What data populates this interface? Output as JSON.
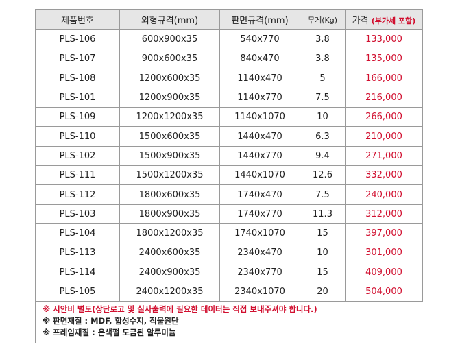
{
  "headers": {
    "product_no": "제품번호",
    "outer_size": "외형규격(mm)",
    "board_size": "판면규격(mm)",
    "weight": "무게(Kg)",
    "price": "가격",
    "price_sub": "(부가세 포함)"
  },
  "rows": [
    {
      "id": "PLS-106",
      "outer": "600x900x35",
      "board": "540x770",
      "weight": "3.8",
      "price": "133,000"
    },
    {
      "id": "PLS-107",
      "outer": "900x600x35",
      "board": "840x470",
      "weight": "3.8",
      "price": "135,000"
    },
    {
      "id": "PLS-108",
      "outer": "1200x600x35",
      "board": "1140x470",
      "weight": "5",
      "price": "166,000"
    },
    {
      "id": "PLS-101",
      "outer": "1200x900x35",
      "board": "1140x770",
      "weight": "7.5",
      "price": "216,000"
    },
    {
      "id": "PLS-109",
      "outer": "1200x1200x35",
      "board": "1140x1070",
      "weight": "10",
      "price": "266,000"
    },
    {
      "id": "PLS-110",
      "outer": "1500x600x35",
      "board": "1440x470",
      "weight": "6.3",
      "price": "210,000"
    },
    {
      "id": "PLS-102",
      "outer": "1500x900x35",
      "board": "1440x770",
      "weight": "9.4",
      "price": "271,000"
    },
    {
      "id": "PLS-111",
      "outer": "1500x1200x35",
      "board": "1440x1070",
      "weight": "12.6",
      "price": "332,000"
    },
    {
      "id": "PLS-112",
      "outer": "1800x600x35",
      "board": "1740x470",
      "weight": "7.5",
      "price": "240,000"
    },
    {
      "id": "PLS-103",
      "outer": "1800x900x35",
      "board": "1740x770",
      "weight": "11.3",
      "price": "312,000"
    },
    {
      "id": "PLS-104",
      "outer": "1800x1200x35",
      "board": "1740x1070",
      "weight": "15",
      "price": "397,000"
    },
    {
      "id": "PLS-113",
      "outer": "2400x600x35",
      "board": "2340x470",
      "weight": "10",
      "price": "301,000"
    },
    {
      "id": "PLS-114",
      "outer": "2400x900x35",
      "board": "2340x770",
      "weight": "15",
      "price": "409,000"
    },
    {
      "id": "PLS-105",
      "outer": "2400x1200x35",
      "board": "2340x1070",
      "weight": "20",
      "price": "504,000"
    }
  ],
  "notes": [
    "※ 시안비 별도(상단로고 및 실사출력에 필요한 데이터는 직접 보내주셔야 합니다.)",
    "※ 판면재질 : MDF, 합성수지, 직물원단",
    "※ 프레임재질 : 은색펄 도금된 알루미늄"
  ],
  "colors": {
    "price_red": "#d10f2f",
    "header_bg": "#e6e6e6",
    "border": "#9a9a9a"
  }
}
